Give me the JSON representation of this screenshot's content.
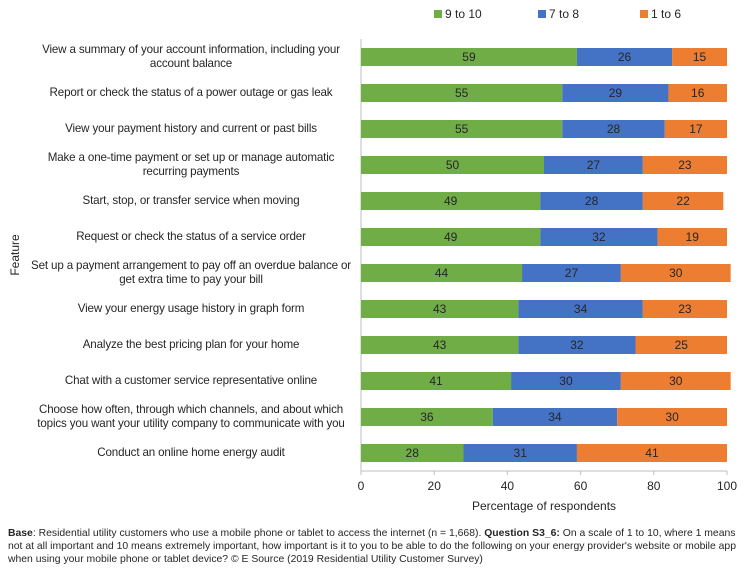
{
  "chart_data": {
    "type": "stacked_barh",
    "y_label": "Feature",
    "x_label": "Percentage of respondents",
    "categories": [
      "View a summary of your account information, including your account balance",
      "Report or check the status of a power outage or gas leak",
      "View your payment history and current or past bills",
      "Make a one-time payment or set up or manage automatic recurring payments",
      "Start, stop, or transfer service when moving",
      "Request or check the status of a service order",
      "Set up a payment arrangement to pay off an overdue balance or get extra time to pay your bill",
      "View your energy usage history in graph form",
      "Analyze the best pricing plan for your home",
      "Chat with a customer service representative online",
      "Choose how often, through which channels, and about which topics you want your utility company to communicate with you",
      "Conduct an online home energy audit"
    ],
    "series": [
      {
        "name": "9 to 10",
        "color": "#70ad47",
        "values": [
          59,
          55,
          55,
          50,
          49,
          49,
          44,
          43,
          43,
          41,
          36,
          28
        ]
      },
      {
        "name": "7 to 8",
        "color": "#4472c4",
        "values": [
          26,
          29,
          28,
          27,
          28,
          32,
          27,
          34,
          32,
          30,
          34,
          31
        ]
      },
      {
        "name": "1 to 6",
        "color": "#ed7d31",
        "values": [
          15,
          16,
          17,
          23,
          22,
          19,
          30,
          23,
          25,
          30,
          30,
          41
        ]
      }
    ],
    "xlim": [
      0,
      100
    ],
    "xticks": [
      0,
      20,
      40,
      60,
      80,
      100
    ],
    "grid": false,
    "legend": "top",
    "footnote": {
      "base_label": "Base",
      "base_text": ": Residential utility customers who use a mobile phone or tablet to access the internet (n = 1,668).",
      "question_label": "Question S3_6:",
      "question_text": "On a scale of 1 to 10, where 1 means not at all important and 10 means extremely important, how important is it to you to be able to do the following on your energy provider's website or mobile app when using your mobile phone or tablet device? © E Source (2019 Residential Utility Customer Survey)"
    }
  }
}
